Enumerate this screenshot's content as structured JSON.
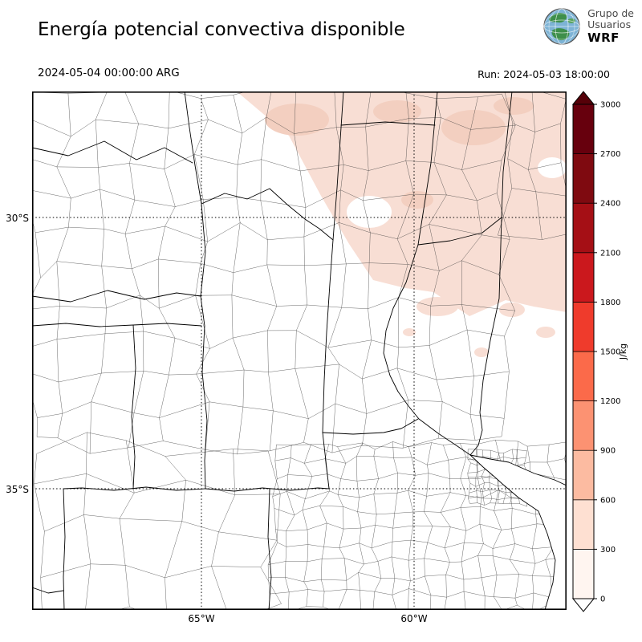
{
  "header": {
    "title": "Energía potencial convectiva disponible",
    "valid_time": "2024-05-04 00:00:00 ARG",
    "run_label": "Run: 2024-05-03 18:00:00"
  },
  "logo": {
    "line1": "Grupo de",
    "line2": "Usuarios",
    "line3": "WRF"
  },
  "axes": {
    "y_ticks": [
      "30°S",
      "35°S"
    ],
    "x_ticks": [
      "65°W",
      "60°W"
    ]
  },
  "colorbar": {
    "unit": "J/kg",
    "ticks_bottom_to_top": [
      "0",
      "300",
      "600",
      "900",
      "1200",
      "1500",
      "1800",
      "2100",
      "2400",
      "2700",
      "3000"
    ],
    "colors_bottom_to_top": [
      "#fff5f0",
      "#fee0d2",
      "#fcbba1",
      "#fc9272",
      "#fb6a4a",
      "#ef3b2c",
      "#cb181d",
      "#a50f15",
      "#7f0a10",
      "#67000d"
    ],
    "under_color": "#ffffff",
    "over_color": "#560008"
  },
  "chart_data": {
    "type": "heatmap",
    "variable": "CAPE (Energía potencial convectiva disponible)",
    "unit": "J/kg",
    "valid_time": "2024-05-04 00:00:00 ARG",
    "model_run": "2024-05-03 18:00:00",
    "levels": [
      0,
      300,
      600,
      900,
      1200,
      1500,
      1800,
      2100,
      2400,
      2700,
      3000
    ],
    "lat_ticks": [
      "30°S",
      "35°S"
    ],
    "lon_ticks": [
      "65°W",
      "60°W"
    ],
    "colors": {
      "cape_0_300": "#f8ded4",
      "cape_300_600": "#f3cfc0"
    },
    "field_summary": [
      {
        "region": "north / northeast of domain (around and north of 30°S, east of ~64°W)",
        "cape_J_per_kg": "0-300, locally 300-600"
      },
      {
        "region": "center, west and south of domain",
        "cape_J_per_kg": "0 (no shading)"
      }
    ]
  }
}
